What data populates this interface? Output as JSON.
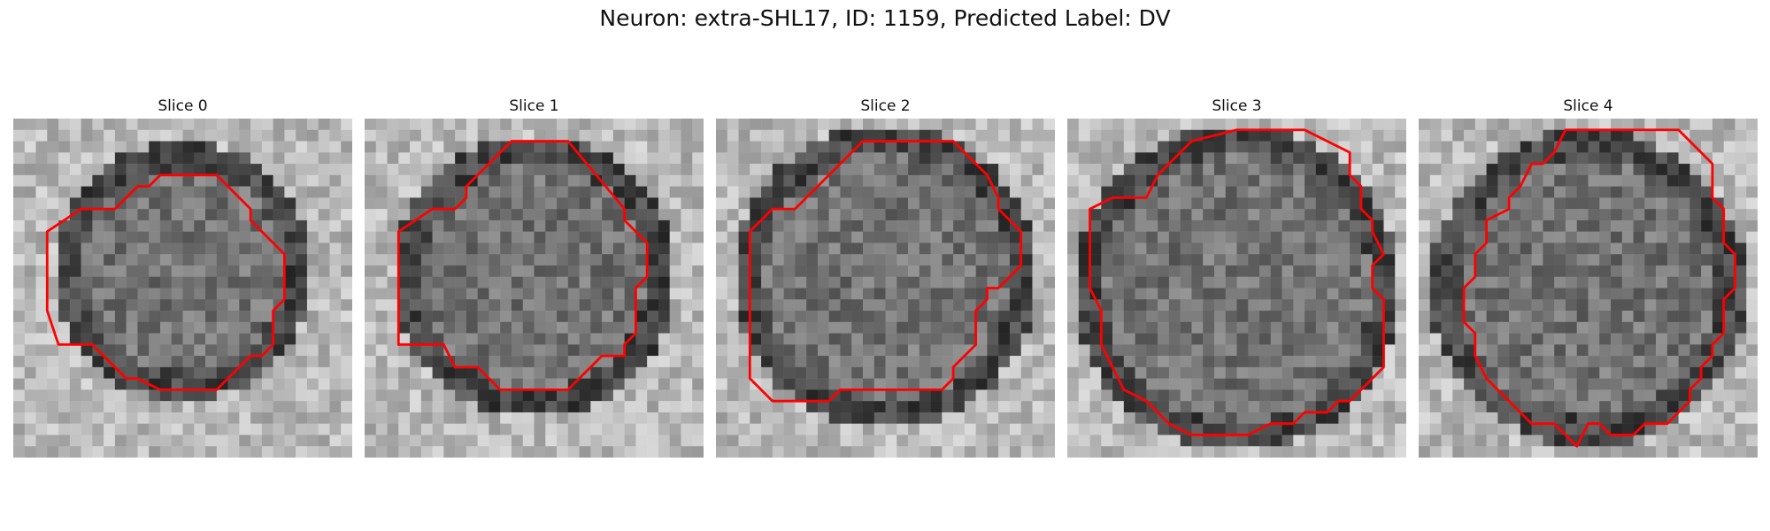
{
  "figure": {
    "title": "Neuron: extra-SHL17, ID: 1159, Predicted Label: DV"
  },
  "panels": [
    {
      "title": "Slice 0"
    },
    {
      "title": "Slice 1"
    },
    {
      "title": "Slice 2"
    },
    {
      "title": "Slice 3"
    },
    {
      "title": "Slice 4"
    }
  ],
  "colors": {
    "contour": "#ff0000",
    "background": "#ffffff"
  }
}
